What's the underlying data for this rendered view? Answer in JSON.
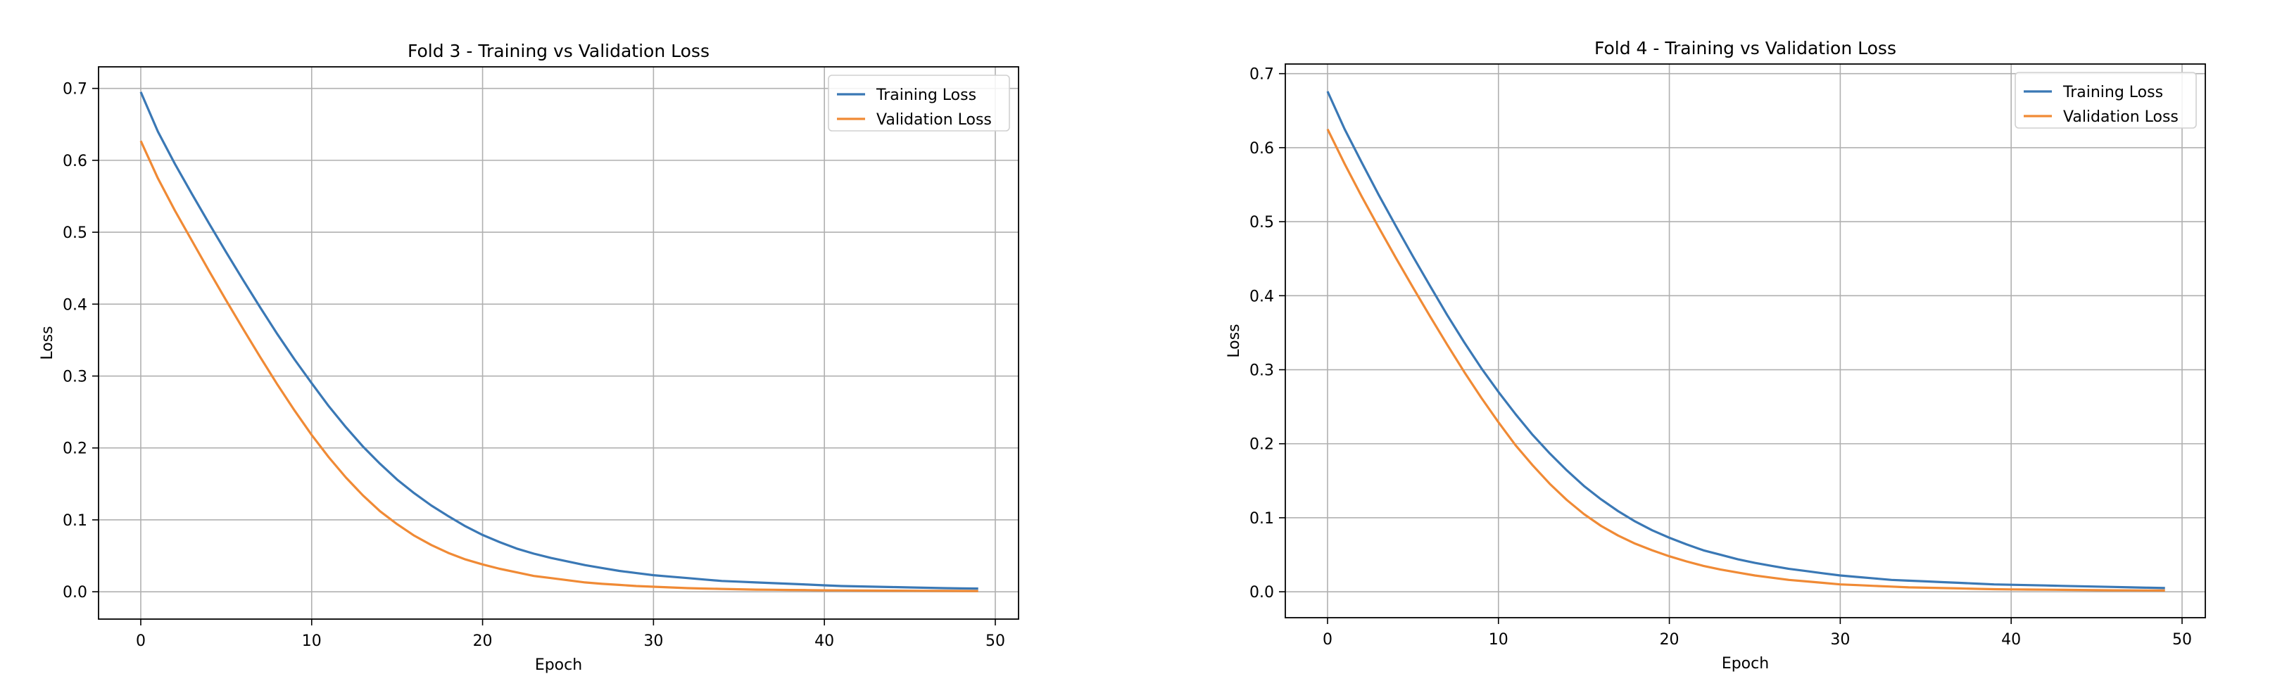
{
  "chart_data": [
    {
      "type": "line",
      "title": "Fold 3 - Training vs Validation Loss",
      "xlabel": "Epoch",
      "ylabel": "Loss",
      "xlim": [
        -2.47,
        51.36
      ],
      "ylim": [
        -0.038,
        0.73
      ],
      "xticks": [
        0,
        10,
        20,
        30,
        40,
        50
      ],
      "xtick_labels": [
        "0",
        "10",
        "20",
        "30",
        "40",
        "50"
      ],
      "yticks": [
        0.0,
        0.1,
        0.2,
        0.3,
        0.4,
        0.5,
        0.6,
        0.7
      ],
      "ytick_labels": [
        "0.0",
        "0.1",
        "0.2",
        "0.3",
        "0.4",
        "0.5",
        "0.6",
        "0.7"
      ],
      "grid": true,
      "legend_position": "top-right",
      "series": [
        {
          "name": "Training Loss",
          "color": "#3a78b5",
          "values": [
            0.695,
            0.64,
            0.595,
            0.553,
            0.512,
            0.472,
            0.433,
            0.395,
            0.358,
            0.323,
            0.29,
            0.258,
            0.229,
            0.202,
            0.178,
            0.156,
            0.137,
            0.12,
            0.105,
            0.091,
            0.079,
            0.069,
            0.06,
            0.053,
            0.047,
            0.042,
            0.037,
            0.033,
            0.029,
            0.026,
            0.023,
            0.021,
            0.019,
            0.017,
            0.015,
            0.014,
            0.013,
            0.012,
            0.011,
            0.01,
            0.009,
            0.008,
            0.0075,
            0.007,
            0.0065,
            0.006,
            0.0055,
            0.005,
            0.0047,
            0.0045
          ]
        },
        {
          "name": "Validation Loss",
          "color": "#f08a35",
          "values": [
            0.627,
            0.575,
            0.53,
            0.488,
            0.446,
            0.405,
            0.365,
            0.326,
            0.288,
            0.252,
            0.218,
            0.187,
            0.159,
            0.134,
            0.112,
            0.094,
            0.078,
            0.065,
            0.054,
            0.045,
            0.038,
            0.032,
            0.027,
            0.022,
            0.019,
            0.016,
            0.013,
            0.011,
            0.0095,
            0.008,
            0.007,
            0.006,
            0.005,
            0.0045,
            0.004,
            0.0035,
            0.003,
            0.0028,
            0.0025,
            0.0023,
            0.002,
            0.0019,
            0.0017,
            0.0016,
            0.0015,
            0.0014,
            0.0013,
            0.0012,
            0.0011,
            0.001
          ]
        }
      ]
    },
    {
      "type": "line",
      "title": "Fold 4 - Training vs Validation Loss",
      "xlabel": "Epoch",
      "ylabel": "Loss",
      "xlim": [
        -2.47,
        51.36
      ],
      "ylim": [
        -0.035,
        0.713
      ],
      "xticks": [
        0,
        10,
        20,
        30,
        40,
        50
      ],
      "xtick_labels": [
        "0",
        "10",
        "20",
        "30",
        "40",
        "50"
      ],
      "yticks": [
        0.0,
        0.1,
        0.2,
        0.3,
        0.4,
        0.5,
        0.6,
        0.7
      ],
      "ytick_labels": [
        "0.0",
        "0.1",
        "0.2",
        "0.3",
        "0.4",
        "0.5",
        "0.6",
        "0.7"
      ],
      "grid": true,
      "legend_position": "top-right",
      "series": [
        {
          "name": "Training Loss",
          "color": "#3a78b5",
          "values": [
            0.676,
            0.625,
            0.58,
            0.536,
            0.494,
            0.453,
            0.413,
            0.374,
            0.337,
            0.302,
            0.27,
            0.24,
            0.212,
            0.187,
            0.164,
            0.143,
            0.125,
            0.109,
            0.095,
            0.083,
            0.073,
            0.064,
            0.056,
            0.05,
            0.044,
            0.039,
            0.035,
            0.031,
            0.028,
            0.025,
            0.022,
            0.02,
            0.018,
            0.016,
            0.015,
            0.014,
            0.013,
            0.012,
            0.011,
            0.01,
            0.0095,
            0.009,
            0.0085,
            0.008,
            0.0075,
            0.007,
            0.0065,
            0.006,
            0.0055,
            0.005
          ]
        },
        {
          "name": "Validation Loss",
          "color": "#f08a35",
          "values": [
            0.625,
            0.578,
            0.534,
            0.492,
            0.451,
            0.411,
            0.372,
            0.334,
            0.297,
            0.262,
            0.229,
            0.198,
            0.171,
            0.146,
            0.124,
            0.105,
            0.089,
            0.076,
            0.065,
            0.056,
            0.048,
            0.041,
            0.035,
            0.03,
            0.026,
            0.022,
            0.019,
            0.016,
            0.014,
            0.012,
            0.01,
            0.009,
            0.008,
            0.007,
            0.006,
            0.0055,
            0.005,
            0.0045,
            0.004,
            0.0035,
            0.0032,
            0.003,
            0.0028,
            0.0026,
            0.0024,
            0.0022,
            0.002,
            0.0019,
            0.0018,
            0.0017
          ]
        }
      ]
    }
  ]
}
